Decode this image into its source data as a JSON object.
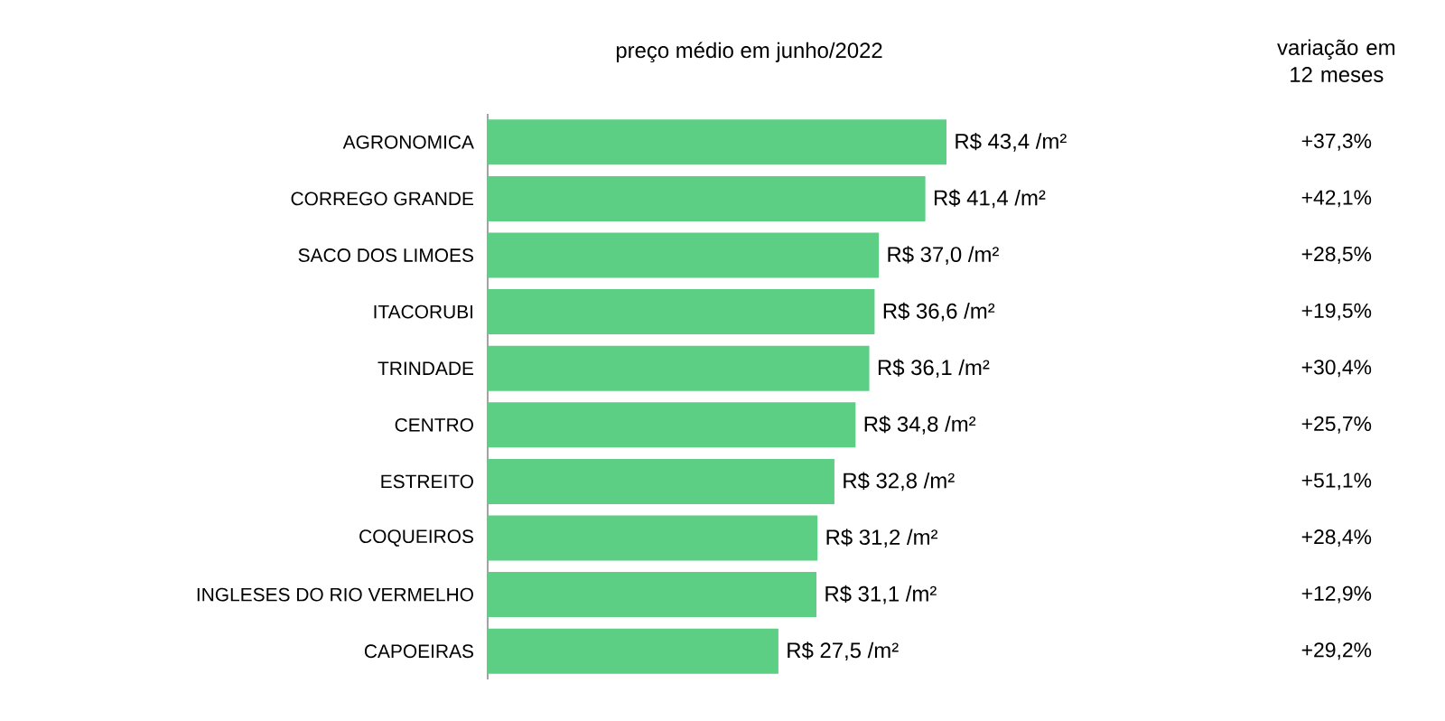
{
  "chart_data": {
    "type": "bar",
    "orientation": "horizontal",
    "title": "preço médio em junho/2022",
    "color": "#5ccf85",
    "categories": [
      "AGRONOMICA",
      "CORREGO GRANDE",
      "SACO DOS LIMOES",
      "ITACORUBI",
      "TRINDADE",
      "CENTRO",
      "ESTREITO",
      "COQUEIROS",
      "INGLESES DO RIO VERMELHO",
      "CAPOEIRAS"
    ],
    "values": [
      43.4,
      41.4,
      37.0,
      36.6,
      36.1,
      34.8,
      32.8,
      31.2,
      31.1,
      27.5
    ],
    "value_labels": [
      "R$ 43,4 /m²",
      "R$ 41,4 /m²",
      "R$ 37,0 /m²",
      "R$ 36,6 /m²",
      "R$ 36,1 /m²",
      "R$ 34,8 /m²",
      "R$ 32,8 /m²",
      "R$ 31,2 /m²",
      "R$ 31,1 /m²",
      "R$ 27,5 /m²"
    ],
    "annotations": [
      "variação em 12 meses",
      "+37,3%",
      "+42,1%",
      "+28,5%",
      "+19,5%",
      "+30,4%",
      "+25,7%",
      "+51,1%",
      "+28,4%",
      "+12,9%",
      "+29,2%"
    ]
  }
}
